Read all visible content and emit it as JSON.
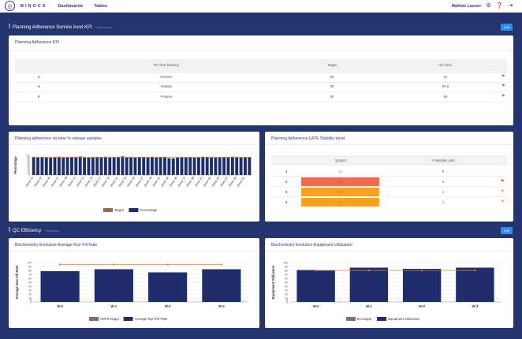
{
  "header": {
    "logo_glyph": "◎",
    "brand": "BINOCS",
    "nav": [
      "Dashboards",
      "Tables"
    ],
    "user": "Mathias Lassen",
    "icons": [
      "gear-icon",
      "help-icon",
      "logout-icon"
    ]
  },
  "section1": {
    "title": "Planning Adherence Service level KPI",
    "breadcrumb": "/ Adherence",
    "edit_label": "Edit"
  },
  "kpi": {
    "title": "Planning Adherence KPI",
    "columns": [
      "On Time Delivery",
      "Target",
      "On Time"
    ],
    "rows": [
      {
        "id": "3",
        "name": "Release",
        "target": "80",
        "ontime": "91",
        "flag": "green"
      },
      {
        "id": "4",
        "name": "Stability",
        "target": "98",
        "ontime": "95.8",
        "flag": "red"
      },
      {
        "id": "5",
        "name": "Projects",
        "target": "85",
        "ontime": "89",
        "flag": "green"
      }
    ]
  },
  "release": {
    "title": "Planning adherence on-time % release samples",
    "chart_data": {
      "type": "bar",
      "ylabel": "Percentage",
      "ylim": [
        0,
        100
      ],
      "yticks": [
        0,
        10,
        20,
        30,
        40,
        50,
        60,
        70,
        80,
        90,
        100
      ],
      "categories": [
        "Week 01",
        "Week 02",
        "Week 03",
        "Week 04",
        "Week 05",
        "Week 06",
        "Week 07",
        "Week 08",
        "Week 09",
        "Week 10",
        "Week 11",
        "Week 12",
        "Week 13",
        "Week 14",
        "Week 15",
        "Week 16",
        "Week 17",
        "Week 18",
        "Week 19",
        "Week 20",
        "Week 21",
        "Week 22",
        "Week 23",
        "Week 24",
        "Week 25",
        "Week 26",
        "Week 27",
        "Week 28",
        "Week 29",
        "Week 30",
        "Week 31",
        "Week 32",
        "Week 33",
        "Week 34",
        "Week 35",
        "Week 36",
        "Week 37",
        "Week 38",
        "Week 39",
        "Week 40",
        "Week 41",
        "Week 42",
        "Week 43",
        "Week 44",
        "Week 45",
        "Week 46",
        "Week 47",
        "Week 48",
        "Week 49",
        "Week 50",
        "Week 51",
        "Week 52"
      ],
      "shown_labels": [
        "Week 01",
        "Week 03",
        "Week 05",
        "Week 07",
        "Week 09",
        "Week 11",
        "Week 13",
        "Week 15",
        "Week 17",
        "Week 19",
        "Week 21",
        "Week 23",
        "Week 25",
        "Week 27",
        "Week 29",
        "Week 31",
        "Week 33",
        "Week 35",
        "Week 37",
        "Week 39",
        "Week 41",
        "Week 43",
        "Week 45",
        "Week 47",
        "Week 49",
        "Week 51"
      ],
      "series": [
        {
          "name": "Target",
          "type": "line",
          "values": [
            90,
            90,
            90,
            90,
            90,
            90,
            90,
            90,
            90,
            90,
            90,
            90,
            90,
            90,
            90,
            90,
            90,
            90,
            90,
            90,
            90,
            90,
            90,
            90,
            90,
            90,
            90,
            90,
            90,
            90,
            90,
            90,
            90,
            90,
            90,
            90,
            90,
            90,
            90,
            90,
            90,
            90,
            90,
            90,
            90,
            90,
            90,
            90,
            90,
            90,
            90,
            90
          ]
        },
        {
          "name": "Percentage",
          "type": "bar",
          "values": [
            91,
            89,
            92,
            90,
            88,
            91,
            93,
            90,
            89,
            92,
            91,
            94,
            90,
            88,
            91,
            92,
            90,
            93,
            89,
            91,
            92,
            95,
            90,
            91,
            88,
            92,
            91,
            90,
            93,
            89,
            92,
            91,
            85,
            84,
            89,
            91,
            90,
            92,
            88,
            91,
            93,
            92,
            90,
            89,
            91,
            92,
            90,
            93,
            91,
            90,
            92,
            91
          ]
        }
      ],
      "legend_position": "bottom",
      "colors": {
        "bar": "#1f2d6b",
        "line": "#f07d2a",
        "legend_target": "#8a6d5b"
      }
    }
  },
  "stability": {
    "title": "Planning Adherence LATE Stability trend",
    "columns": [
      "Quarter",
      "# Samples Late"
    ],
    "rows": [
      {
        "id": "1",
        "quarter": "Q1",
        "late": "0",
        "bg": "#ffffff",
        "flag": ""
      },
      {
        "id": "2",
        "quarter": "Q2",
        "late": "2",
        "bg": "#f26b4f",
        "flag": "red"
      },
      {
        "id": "3",
        "quarter": "Q3",
        "late": "1",
        "bg": "#f9a21a",
        "flag": "orange"
      },
      {
        "id": "4",
        "quarter": "Q4",
        "late": "1",
        "bg": "#f9a21a",
        "flag": "orange"
      }
    ]
  },
  "section2": {
    "title": "QC Efficiency",
    "breadcrumb": "/ Efficiency",
    "edit_label": "Edit"
  },
  "arfr": {
    "title": "Biochemistry Evolution Average Run Fill Rate",
    "chart_data": {
      "type": "bar",
      "ylabel": "Average Run Fill Rate",
      "ylim": [
        0,
        100
      ],
      "yticks": [
        0,
        5,
        10,
        20,
        30,
        40,
        50,
        60,
        70,
        80,
        90,
        100
      ],
      "categories": [
        "W-0",
        "W-1",
        "W-2",
        "W-3"
      ],
      "series": [
        {
          "name": "ARFR target",
          "type": "line",
          "values": [
            95,
            95,
            95,
            95
          ]
        },
        {
          "name": "Average Run Fill Rate",
          "type": "bar",
          "values": [
            78,
            83,
            75,
            83
          ]
        }
      ],
      "legend_position": "bottom",
      "colors": {
        "bar": "#1f2d6b",
        "line": "#f07d2a",
        "legend_target": "#8a6d5b"
      }
    }
  },
  "eu": {
    "title": "Biochemistry Evolution Equipment Utilization",
    "chart_data": {
      "type": "bar",
      "ylabel": "Equipment Utilization",
      "ylim": [
        0,
        100
      ],
      "yticks": [
        0,
        5,
        10,
        20,
        30,
        40,
        50,
        60,
        70,
        80,
        90,
        100
      ],
      "categories": [
        "W-0",
        "W-1",
        "W-2",
        "W-3"
      ],
      "series": [
        {
          "name": "EU target",
          "type": "line",
          "values": [
            80,
            80,
            80,
            80
          ]
        },
        {
          "name": "Equipment Utilization",
          "type": "bar",
          "values": [
            81,
            87,
            84,
            87
          ]
        }
      ],
      "legend_position": "bottom",
      "colors": {
        "bar": "#1f2d6b",
        "line": "#f07d2a",
        "legend_target": "#8a6d5b"
      }
    }
  }
}
